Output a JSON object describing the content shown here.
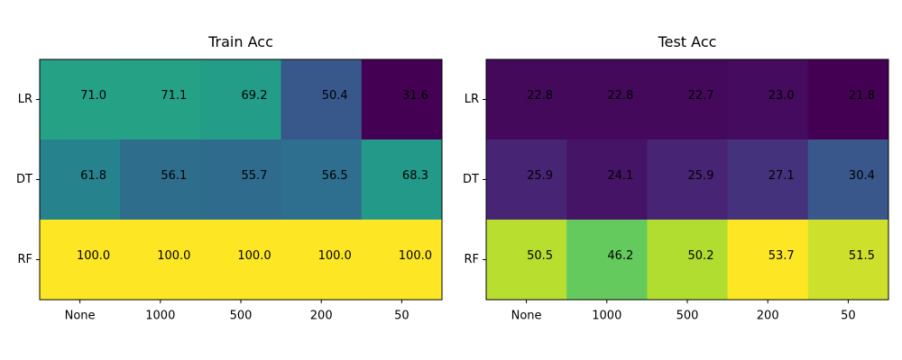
{
  "chart_data": [
    {
      "type": "heatmap",
      "title": "Train Acc",
      "x_categories": [
        "None",
        "1000",
        "500",
        "200",
        "50"
      ],
      "y_categories": [
        "LR",
        "DT",
        "RF"
      ],
      "values": [
        [
          71.0,
          71.1,
          69.2,
          50.4,
          31.6
        ],
        [
          61.8,
          56.1,
          55.7,
          56.5,
          68.3
        ],
        [
          100.0,
          100.0,
          100.0,
          100.0,
          100.0
        ]
      ],
      "value_range": [
        31.6,
        100.0
      ],
      "colormap": "viridis",
      "grid": false,
      "xlabel": "",
      "ylabel": ""
    },
    {
      "type": "heatmap",
      "title": "Test Acc",
      "x_categories": [
        "None",
        "1000",
        "500",
        "200",
        "50"
      ],
      "y_categories": [
        "LR",
        "DT",
        "RF"
      ],
      "values": [
        [
          22.8,
          22.8,
          22.7,
          23.0,
          21.8
        ],
        [
          25.9,
          24.1,
          25.9,
          27.1,
          30.4
        ],
        [
          50.5,
          46.2,
          50.2,
          53.7,
          51.5
        ]
      ],
      "value_range": [
        21.8,
        53.7
      ],
      "colormap": "viridis",
      "grid": false,
      "xlabel": "",
      "ylabel": ""
    }
  ]
}
